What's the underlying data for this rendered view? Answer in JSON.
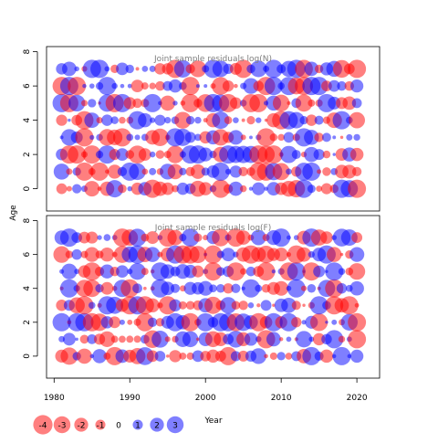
{
  "chart_data": [
    {
      "type": "scatter",
      "chart_style": "bubble residual plot",
      "title": "Joint sample residuals log(N)",
      "xlabel": "Year",
      "ylabel": "Age",
      "xlim": [
        1979,
        2023
      ],
      "ylim": [
        -1.3,
        8.3
      ],
      "x_ticks": [
        1980,
        1990,
        2000,
        2010,
        2020
      ],
      "y_ticks": [
        0,
        2,
        4,
        6,
        8
      ],
      "years": [
        1981,
        2020
      ],
      "ages": [
        0,
        7
      ],
      "colors": {
        "positive": "#0000FF",
        "negative": "#FF0000"
      },
      "seed": 17,
      "note_values": "residual per year and age is estimated; radius ∝ sqrt(|residual|)"
    },
    {
      "type": "scatter",
      "chart_style": "bubble residual plot",
      "title": "Joint sample residuals log(F)",
      "xlabel": "Year",
      "ylabel": "Age",
      "xlim": [
        1979,
        2023
      ],
      "ylim": [
        -1.3,
        8.3
      ],
      "x_ticks": [
        1980,
        1990,
        2000,
        2010,
        2020
      ],
      "y_ticks": [
        0,
        2,
        4,
        6,
        8
      ],
      "years": [
        1981,
        2020
      ],
      "ages": [
        0,
        7
      ],
      "colors": {
        "positive": "#0000FF",
        "negative": "#FF0000"
      },
      "seed": 53
    }
  ],
  "legend": {
    "entries": [
      {
        "label": "-4",
        "value": -4
      },
      {
        "label": "-3",
        "value": -3
      },
      {
        "label": "-2",
        "value": -2
      },
      {
        "label": "-1",
        "value": -1
      },
      {
        "label": "0",
        "value": 0
      },
      {
        "label": "1",
        "value": 1
      },
      {
        "label": "2",
        "value": 2
      },
      {
        "label": "3",
        "value": 3
      }
    ]
  },
  "shared_xlabel": "Year",
  "shared_ylabel": "Age"
}
